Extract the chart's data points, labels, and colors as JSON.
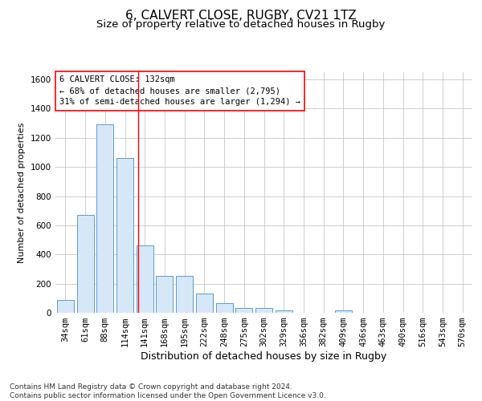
{
  "title1": "6, CALVERT CLOSE, RUGBY, CV21 1TZ",
  "title2": "Size of property relative to detached houses in Rugby",
  "xlabel": "Distribution of detached houses by size in Rugby",
  "ylabel": "Number of detached properties",
  "footer": "Contains HM Land Registry data © Crown copyright and database right 2024.\nContains public sector information licensed under the Open Government Licence v3.0.",
  "categories": [
    "34sqm",
    "61sqm",
    "88sqm",
    "114sqm",
    "141sqm",
    "168sqm",
    "195sqm",
    "222sqm",
    "248sqm",
    "275sqm",
    "302sqm",
    "329sqm",
    "356sqm",
    "382sqm",
    "409sqm",
    "436sqm",
    "463sqm",
    "490sqm",
    "516sqm",
    "543sqm",
    "570sqm"
  ],
  "values": [
    90,
    670,
    1295,
    1060,
    460,
    255,
    255,
    130,
    65,
    35,
    35,
    15,
    0,
    0,
    15,
    0,
    0,
    0,
    0,
    0,
    0
  ],
  "bar_color": "#d6e8f7",
  "bar_edge_color": "#5b9bd5",
  "grid_color": "#c8c8c8",
  "annotation_line_color": "red",
  "annotation_box_text": "6 CALVERT CLOSE: 132sqm\n← 68% of detached houses are smaller (2,795)\n31% of semi-detached houses are larger (1,294) →",
  "ylim": [
    0,
    1650
  ],
  "yticks": [
    0,
    200,
    400,
    600,
    800,
    1000,
    1200,
    1400,
    1600
  ],
  "title1_fontsize": 11,
  "title2_fontsize": 9.5,
  "xlabel_fontsize": 9,
  "ylabel_fontsize": 8,
  "tick_fontsize": 7.5,
  "annotation_fontsize": 7.5,
  "footer_fontsize": 6.5
}
